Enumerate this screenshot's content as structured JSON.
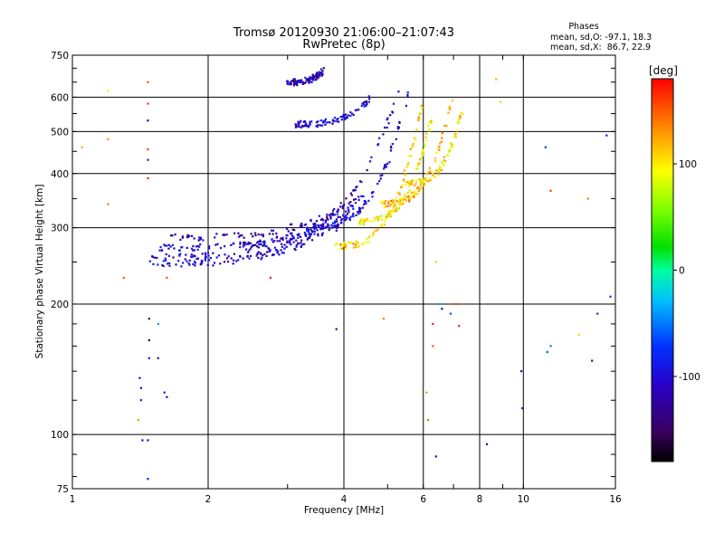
{
  "chart_data": {
    "type": "scatter",
    "title": "Tromsø 20120930 21:06:00–21:07:43",
    "subtitle": "RwPretec (8p)",
    "xlabel": "Frequency [MHz]",
    "ylabel": "Stationary phase Virtual Height [km]",
    "x_scale": "log",
    "y_scale": "log",
    "xlim": [
      1,
      16
    ],
    "ylim": [
      75,
      750
    ],
    "x_ticks": [
      1,
      2,
      4,
      6,
      8,
      10,
      16
    ],
    "y_ticks": [
      75,
      100,
      200,
      300,
      400,
      500,
      600,
      750
    ],
    "grid": true,
    "stats": {
      "heading": "Phases",
      "line_o": "mean, sd,O: -97.1, 18.3",
      "line_x": "mean, sd,X:  86.7, 22.9"
    },
    "colorbar": {
      "unit": "[deg]",
      "range": [
        -180,
        180
      ],
      "ticks": [
        100,
        0,
        -100
      ]
    },
    "traces": [
      {
        "x_range": [
          1.45,
          3.95
        ],
        "h_start": 248,
        "h_end": 305,
        "phase": -105
      },
      {
        "x_range": [
          1.5,
          4.1
        ],
        "h_start": 258,
        "h_end": 320,
        "phase": -110
      },
      {
        "x_range": [
          1.55,
          4.3
        ],
        "h_start": 270,
        "h_end": 338,
        "phase": -100
      },
      {
        "x_range": [
          1.6,
          4.5
        ],
        "h_start": 285,
        "h_end": 360,
        "phase": -115
      },
      {
        "x_range": [
          2.3,
          5.3
        ],
        "h_start": 275,
        "h_end": 620,
        "phase": -110
      },
      {
        "x_range": [
          3.3,
          5.6
        ],
        "h_start": 300,
        "h_end": 640,
        "phase": -105
      },
      {
        "x_range": [
          3.8,
          6.0
        ],
        "h_start": 272,
        "h_end": 600,
        "phase": 110
      },
      {
        "x_range": [
          4.3,
          6.3
        ],
        "h_start": 310,
        "h_end": 560,
        "phase": 95
      },
      {
        "x_range": [
          4.8,
          7.0
        ],
        "h_start": 340,
        "h_end": 620,
        "phase": 120
      },
      {
        "x_range": [
          5.5,
          7.3
        ],
        "h_start": 380,
        "h_end": 560,
        "phase": 100
      },
      {
        "x_range": [
          3.1,
          4.6
        ],
        "h_start": 520,
        "h_end": 600,
        "phase": -105
      },
      {
        "x_range": [
          3.0,
          3.6
        ],
        "h_start": 650,
        "h_end": 690,
        "phase": -110
      }
    ],
    "points": [
      {
        "x": 1.05,
        "y": 460,
        "phase": 120
      },
      {
        "x": 1.2,
        "y": 480,
        "phase": 130
      },
      {
        "x": 1.2,
        "y": 620,
        "phase": 100
      },
      {
        "x": 1.3,
        "y": 230,
        "phase": 150
      },
      {
        "x": 1.2,
        "y": 340,
        "phase": 140
      },
      {
        "x": 1.47,
        "y": 650,
        "phase": 150
      },
      {
        "x": 1.47,
        "y": 580,
        "phase": 160
      },
      {
        "x": 1.47,
        "y": 530,
        "phase": -110
      },
      {
        "x": 1.47,
        "y": 390,
        "phase": 170
      },
      {
        "x": 1.47,
        "y": 455,
        "phase": 160
      },
      {
        "x": 1.47,
        "y": 430,
        "phase": -80
      },
      {
        "x": 1.48,
        "y": 185,
        "phase": -150
      },
      {
        "x": 1.48,
        "y": 165,
        "phase": -160
      },
      {
        "x": 1.48,
        "y": 150,
        "phase": -100
      },
      {
        "x": 1.41,
        "y": 135,
        "phase": -110
      },
      {
        "x": 1.42,
        "y": 128,
        "phase": -100
      },
      {
        "x": 1.42,
        "y": 120,
        "phase": -90
      },
      {
        "x": 1.55,
        "y": 150,
        "phase": -110
      },
      {
        "x": 1.55,
        "y": 180,
        "phase": -40
      },
      {
        "x": 1.6,
        "y": 125,
        "phase": -80
      },
      {
        "x": 1.62,
        "y": 122,
        "phase": -100
      },
      {
        "x": 1.4,
        "y": 108,
        "phase": 130
      },
      {
        "x": 1.43,
        "y": 97,
        "phase": -110
      },
      {
        "x": 1.47,
        "y": 97,
        "phase": -110
      },
      {
        "x": 1.47,
        "y": 79,
        "phase": -80
      },
      {
        "x": 1.62,
        "y": 230,
        "phase": 150
      },
      {
        "x": 2.75,
        "y": 230,
        "phase": 170
      },
      {
        "x": 3.85,
        "y": 175,
        "phase": -120
      },
      {
        "x": 4.9,
        "y": 185,
        "phase": 140
      },
      {
        "x": 6.1,
        "y": 125,
        "phase": 130
      },
      {
        "x": 6.3,
        "y": 180,
        "phase": 170
      },
      {
        "x": 6.3,
        "y": 160,
        "phase": 150
      },
      {
        "x": 6.15,
        "y": 108,
        "phase": 140
      },
      {
        "x": 6.4,
        "y": 89,
        "phase": -110
      },
      {
        "x": 6.4,
        "y": 250,
        "phase": 110
      },
      {
        "x": 6.5,
        "y": 200,
        "phase": -40
      },
      {
        "x": 6.6,
        "y": 195,
        "phase": -110
      },
      {
        "x": 6.9,
        "y": 190,
        "phase": -60
      },
      {
        "x": 7.1,
        "y": 200,
        "phase": 160
      },
      {
        "x": 7.2,
        "y": 178,
        "phase": 170
      },
      {
        "x": 8.3,
        "y": 95,
        "phase": -110
      },
      {
        "x": 8.7,
        "y": 660,
        "phase": 120
      },
      {
        "x": 8.9,
        "y": 585,
        "phase": 110
      },
      {
        "x": 9.9,
        "y": 140,
        "phase": -110
      },
      {
        "x": 9.95,
        "y": 115,
        "phase": -100
      },
      {
        "x": 11.2,
        "y": 460,
        "phase": -70
      },
      {
        "x": 11.5,
        "y": 365,
        "phase": 160
      },
      {
        "x": 11.5,
        "y": 160,
        "phase": -50
      },
      {
        "x": 11.3,
        "y": 155,
        "phase": -60
      },
      {
        "x": 13.3,
        "y": 170,
        "phase": 110
      },
      {
        "x": 13.9,
        "y": 350,
        "phase": 140
      },
      {
        "x": 14.2,
        "y": 148,
        "phase": -120
      },
      {
        "x": 14.6,
        "y": 190,
        "phase": -70
      },
      {
        "x": 15.3,
        "y": 490,
        "phase": -80
      },
      {
        "x": 15.6,
        "y": 208,
        "phase": -80
      }
    ]
  }
}
